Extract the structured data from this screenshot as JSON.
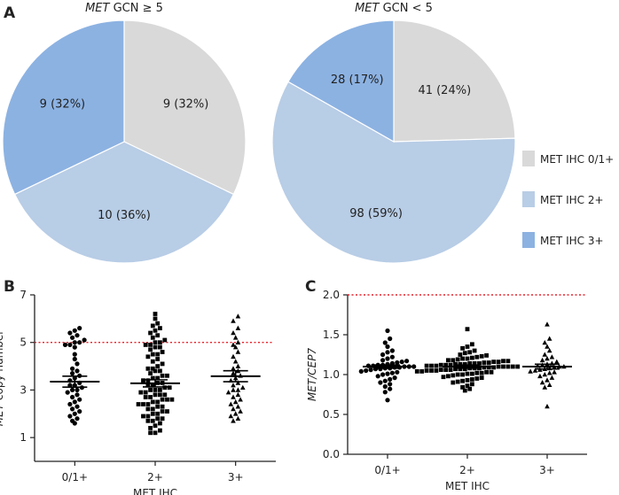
{
  "panel_labels": {
    "a": "A",
    "b": "B",
    "c": "C"
  },
  "colors": {
    "ihc_0_1": "#d9d9d9",
    "ihc_2": "#b8cde6",
    "ihc_3": "#8cb2e2",
    "reference_line": "#e8202a",
    "markers": "#000000"
  },
  "legend": [
    {
      "label": "MET IHC 0/1+",
      "color": "#d9d9d9"
    },
    {
      "label": "MET IHC 2+",
      "color": "#b8cde6"
    },
    {
      "label": "MET IHC 3+",
      "color": "#8cb2e2"
    }
  ],
  "chart_data": [
    {
      "type": "pie",
      "panel": "A",
      "title_italic": "MET",
      "title_rest": " GCN ≥ 5",
      "start_angle_deg": 0,
      "direction": "clockwise",
      "slices": [
        {
          "category": "MET IHC 0/1+",
          "value": 9,
          "label": "9 (32%)",
          "color": "#d9d9d9"
        },
        {
          "category": "MET IHC 2+",
          "value": 10,
          "label": "10 (36%)",
          "color": "#b8cde6"
        },
        {
          "category": "MET IHC 3+",
          "value": 9,
          "label": "9 (32%)",
          "color": "#8cb2e2"
        }
      ]
    },
    {
      "type": "pie",
      "panel": "A",
      "title_italic": "MET",
      "title_rest": " GCN < 5",
      "start_angle_deg": 0,
      "direction": "clockwise",
      "slices": [
        {
          "category": "MET IHC 0/1+",
          "value": 41,
          "label": "41 (24%)",
          "color": "#d9d9d9"
        },
        {
          "category": "MET IHC 2+",
          "value": 98,
          "label": "98 (59%)",
          "color": "#b8cde6"
        },
        {
          "category": "MET IHC 3+",
          "value": 28,
          "label": "28 (17%)",
          "color": "#8cb2e2"
        }
      ]
    },
    {
      "type": "scatter",
      "panel": "B",
      "categories": [
        "0/1+",
        "2+",
        "3+"
      ],
      "xlabel": "MET IHC",
      "ylabel_italic": "MET",
      "ylabel_rest": " copy number",
      "ylim": [
        0,
        7
      ],
      "yticks": [
        1,
        3,
        5,
        7
      ],
      "reference_line": 5,
      "series": [
        {
          "name": "0/1+",
          "marker": "circle",
          "mean": 3.35,
          "sem_low": 3.12,
          "sem_high": 3.58,
          "values": [
            5.6,
            5.5,
            5.4,
            5.3,
            5.2,
            5.1,
            5.0,
            5.0,
            4.9,
            4.9,
            4.8,
            4.5,
            4.3,
            4.1,
            3.9,
            3.8,
            3.7,
            3.6,
            3.5,
            3.4,
            3.3,
            3.2,
            3.2,
            3.1,
            3.0,
            3.0,
            2.9,
            2.8,
            2.7,
            2.6,
            2.5,
            2.4,
            2.3,
            2.2,
            2.1,
            2.0,
            1.9,
            1.8,
            1.7,
            1.6
          ]
        },
        {
          "name": "2+",
          "marker": "square",
          "mean": 3.28,
          "sem_low": 3.13,
          "sem_high": 3.43,
          "values": [
            6.2,
            6.0,
            5.8,
            5.7,
            5.6,
            5.5,
            5.4,
            5.3,
            5.2,
            5.1,
            5.0,
            5.0,
            4.9,
            4.9,
            4.8,
            4.8,
            4.7,
            4.6,
            4.5,
            4.5,
            4.4,
            4.3,
            4.2,
            4.1,
            4.0,
            3.9,
            3.9,
            3.8,
            3.8,
            3.7,
            3.6,
            3.6,
            3.5,
            3.5,
            3.4,
            3.4,
            3.3,
            3.3,
            3.2,
            3.2,
            3.1,
            3.1,
            3.0,
            3.0,
            3.0,
            2.9,
            2.9,
            2.8,
            2.8,
            2.8,
            2.7,
            2.7,
            2.6,
            2.6,
            2.6,
            2.5,
            2.5,
            2.4,
            2.4,
            2.4,
            2.3,
            2.3,
            2.2,
            2.2,
            2.1,
            2.1,
            2.0,
            2.0,
            1.9,
            1.9,
            1.8,
            1.8,
            1.7,
            1.7,
            1.6,
            1.5,
            1.4,
            1.3,
            1.2,
            1.2
          ]
        },
        {
          "name": "3+",
          "marker": "triangle",
          "mean": 3.58,
          "sem_low": 3.35,
          "sem_high": 3.81,
          "values": [
            6.1,
            5.9,
            5.6,
            5.4,
            5.2,
            5.0,
            4.9,
            4.8,
            4.6,
            4.4,
            4.2,
            4.0,
            3.9,
            3.8,
            3.7,
            3.6,
            3.5,
            3.4,
            3.3,
            3.2,
            3.1,
            3.0,
            3.0,
            2.9,
            2.8,
            2.7,
            2.6,
            2.5,
            2.4,
            2.3,
            2.2,
            2.1,
            2.0,
            1.9,
            1.8,
            1.7
          ]
        }
      ]
    },
    {
      "type": "scatter",
      "panel": "C",
      "categories": [
        "0/1+",
        "2+",
        "3+"
      ],
      "xlabel": "MET IHC",
      "ylabel": "MET/CEP7",
      "ylim": [
        0,
        2.0
      ],
      "yticks": [
        0.0,
        0.5,
        1.0,
        1.5,
        2.0
      ],
      "reference_line": 2.0,
      "series": [
        {
          "name": "0/1+",
          "marker": "circle",
          "mean": 1.1,
          "sem_low": 1.08,
          "sem_high": 1.12,
          "values": [
            1.55,
            1.45,
            1.4,
            1.35,
            1.3,
            1.28,
            1.25,
            1.22,
            1.2,
            1.18,
            1.17,
            1.16,
            1.15,
            1.14,
            1.13,
            1.12,
            1.12,
            1.11,
            1.11,
            1.1,
            1.1,
            1.1,
            1.09,
            1.09,
            1.08,
            1.08,
            1.07,
            1.07,
            1.06,
            1.05,
            1.04,
            1.03,
            1.02,
            1.01,
            1.0,
            0.98,
            0.96,
            0.94,
            0.92,
            0.9,
            0.88,
            0.85,
            0.82,
            0.78,
            0.68
          ]
        },
        {
          "name": "2+",
          "marker": "square",
          "mean": 1.1,
          "sem_low": 1.08,
          "sem_high": 1.12,
          "values": [
            1.57,
            1.38,
            1.35,
            1.33,
            1.3,
            1.28,
            1.27,
            1.25,
            1.24,
            1.23,
            1.22,
            1.21,
            1.2,
            1.2,
            1.19,
            1.18,
            1.18,
            1.17,
            1.17,
            1.16,
            1.16,
            1.15,
            1.15,
            1.14,
            1.14,
            1.14,
            1.13,
            1.13,
            1.13,
            1.12,
            1.12,
            1.12,
            1.11,
            1.11,
            1.11,
            1.1,
            1.1,
            1.1,
            1.1,
            1.1,
            1.09,
            1.09,
            1.09,
            1.08,
            1.08,
            1.08,
            1.07,
            1.07,
            1.07,
            1.06,
            1.06,
            1.06,
            1.05,
            1.05,
            1.05,
            1.04,
            1.04,
            1.03,
            1.03,
            1.02,
            1.02,
            1.01,
            1.01,
            1.0,
            1.0,
            0.99,
            0.98,
            0.97,
            0.96,
            0.95,
            0.94,
            0.93,
            0.92,
            0.91,
            0.9,
            0.88,
            0.86,
            0.84,
            0.82,
            0.8
          ]
        },
        {
          "name": "3+",
          "marker": "triangle",
          "mean": 1.1,
          "sem_low": 1.07,
          "sem_high": 1.13,
          "values": [
            1.63,
            1.45,
            1.4,
            1.35,
            1.3,
            1.25,
            1.22,
            1.2,
            1.18,
            1.16,
            1.14,
            1.13,
            1.12,
            1.11,
            1.1,
            1.1,
            1.09,
            1.08,
            1.07,
            1.06,
            1.05,
            1.04,
            1.03,
            1.02,
            1.0,
            0.98,
            0.96,
            0.93,
            0.9,
            0.87,
            0.84,
            0.6
          ]
        }
      ]
    }
  ]
}
